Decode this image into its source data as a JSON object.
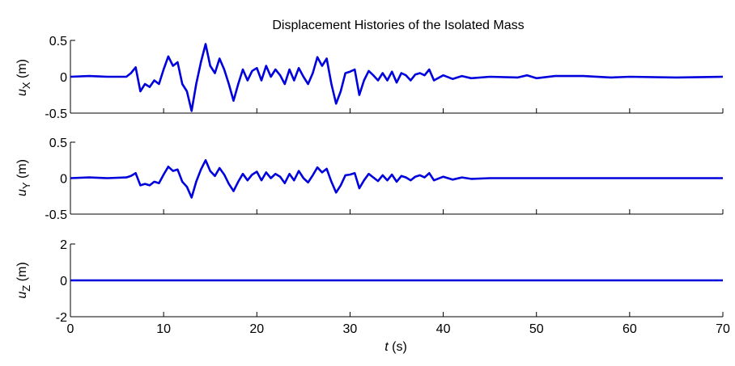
{
  "chart_data": [
    {
      "type": "line",
      "title": "Displacement Histories of the Isolated Mass",
      "ylabel_main": "u",
      "ylabel_sub": "X",
      "ylabel_unit": "(m)",
      "xlim": [
        0,
        70
      ],
      "ylim": [
        -0.5,
        0.5
      ],
      "xticks": [
        0,
        10,
        20,
        30,
        40,
        50,
        60,
        70
      ],
      "yticks": [
        -0.5,
        0,
        0.5
      ],
      "ytick_labels": [
        "-0.5",
        "0",
        "0.5"
      ],
      "color": "#0000dd",
      "series": [
        {
          "x": [
            0,
            2,
            4,
            6,
            6.5,
            7,
            7.5,
            8,
            8.5,
            9,
            9.5,
            10,
            10.5,
            11,
            11.5,
            12,
            12.5,
            13,
            13.5,
            14,
            14.5,
            15,
            15.5,
            16,
            16.5,
            17,
            17.5,
            18,
            18.5,
            19,
            19.5,
            20,
            20.5,
            21,
            21.5,
            22,
            22.5,
            23,
            23.5,
            24,
            24.5,
            25,
            25.5,
            26,
            26.5,
            27,
            27.5,
            28,
            28.5,
            29,
            29.5,
            30,
            30.5,
            31,
            31.5,
            32,
            32.5,
            33,
            33.5,
            34,
            34.5,
            35,
            35.5,
            36,
            36.5,
            37,
            37.5,
            38,
            38.5,
            39,
            40,
            41,
            42,
            43,
            45,
            48,
            49,
            50,
            52,
            55,
            58,
            60,
            65,
            70
          ],
          "y": [
            0,
            0.01,
            0.0,
            0.0,
            0.05,
            0.13,
            -0.2,
            -0.1,
            -0.14,
            -0.05,
            -0.1,
            0.1,
            0.28,
            0.15,
            0.2,
            -0.1,
            -0.2,
            -0.47,
            -0.1,
            0.2,
            0.45,
            0.15,
            0.05,
            0.25,
            0.1,
            -0.1,
            -0.33,
            -0.1,
            0.1,
            -0.05,
            0.08,
            0.12,
            -0.05,
            0.15,
            0.0,
            0.1,
            0.02,
            -0.1,
            0.1,
            -0.05,
            0.12,
            0.0,
            -0.1,
            0.05,
            0.27,
            0.15,
            0.25,
            -0.1,
            -0.37,
            -0.2,
            0.05,
            0.07,
            0.1,
            -0.25,
            -0.05,
            0.08,
            0.02,
            -0.05,
            0.05,
            -0.05,
            0.07,
            -0.08,
            0.05,
            0.02,
            -0.05,
            0.03,
            0.05,
            0.02,
            0.1,
            -0.05,
            0.02,
            -0.03,
            0.01,
            -0.02,
            0.0,
            -0.01,
            0.02,
            -0.02,
            0.01,
            0.01,
            -0.01,
            0.0,
            -0.01,
            0.0
          ]
        }
      ]
    },
    {
      "type": "line",
      "ylabel_main": "u",
      "ylabel_sub": "Y",
      "ylabel_unit": "(m)",
      "xlim": [
        0,
        70
      ],
      "ylim": [
        -0.5,
        0.5
      ],
      "xticks": [
        0,
        10,
        20,
        30,
        40,
        50,
        60,
        70
      ],
      "yticks": [
        -0.5,
        0,
        0.5
      ],
      "ytick_labels": [
        "-0.5",
        "0",
        "0.5"
      ],
      "color": "#0000dd",
      "series": [
        {
          "x": [
            0,
            2,
            4,
            6,
            6.5,
            7,
            7.5,
            8,
            8.5,
            9,
            9.5,
            10,
            10.5,
            11,
            11.5,
            12,
            12.5,
            13,
            13.5,
            14,
            14.5,
            15,
            15.5,
            16,
            16.5,
            17,
            17.5,
            18,
            18.5,
            19,
            19.5,
            20,
            20.5,
            21,
            21.5,
            22,
            22.5,
            23,
            23.5,
            24,
            24.5,
            25,
            25.5,
            26,
            26.5,
            27,
            27.5,
            28,
            28.5,
            29,
            29.5,
            30,
            30.5,
            31,
            31.5,
            32,
            32.5,
            33,
            33.5,
            34,
            34.5,
            35,
            35.5,
            36,
            36.5,
            37,
            37.5,
            38,
            38.5,
            39,
            40,
            41,
            42,
            43,
            45,
            48,
            50,
            55,
            60,
            65,
            70
          ],
          "y": [
            0,
            0.01,
            0.0,
            0.01,
            0.03,
            0.07,
            -0.1,
            -0.08,
            -0.1,
            -0.05,
            -0.07,
            0.05,
            0.16,
            0.1,
            0.12,
            -0.05,
            -0.12,
            -0.27,
            -0.05,
            0.12,
            0.25,
            0.1,
            0.03,
            0.14,
            0.05,
            -0.08,
            -0.18,
            -0.05,
            0.06,
            -0.03,
            0.05,
            0.09,
            -0.03,
            0.08,
            0.0,
            0.06,
            0.02,
            -0.07,
            0.06,
            -0.03,
            0.1,
            0.0,
            -0.06,
            0.04,
            0.15,
            0.08,
            0.13,
            -0.05,
            -0.2,
            -0.1,
            0.04,
            0.05,
            0.07,
            -0.14,
            -0.03,
            0.06,
            0.01,
            -0.04,
            0.04,
            -0.03,
            0.05,
            -0.05,
            0.03,
            0.01,
            -0.03,
            0.02,
            0.04,
            0.01,
            0.07,
            -0.03,
            0.02,
            -0.02,
            0.01,
            -0.01,
            0.0,
            0.0,
            0.0,
            0.0,
            0.0,
            0.0,
            0.0
          ]
        }
      ]
    },
    {
      "type": "line",
      "ylabel_main": "u",
      "ylabel_sub": "Z",
      "ylabel_unit": "(m)",
      "xlim": [
        0,
        70
      ],
      "ylim": [
        -2,
        2
      ],
      "xticks": [
        0,
        10,
        20,
        30,
        40,
        50,
        60,
        70
      ],
      "xtick_labels": [
        "0",
        "10",
        "20",
        "30",
        "40",
        "50",
        "60",
        "70"
      ],
      "yticks": [
        -2,
        0,
        2
      ],
      "ytick_labels": [
        "-2",
        "0",
        "2"
      ],
      "xlabel_italic": "t",
      "xlabel_unit": "(s)",
      "color": "#0000dd",
      "series": [
        {
          "x": [
            0,
            70
          ],
          "y": [
            0,
            0
          ]
        }
      ]
    }
  ]
}
